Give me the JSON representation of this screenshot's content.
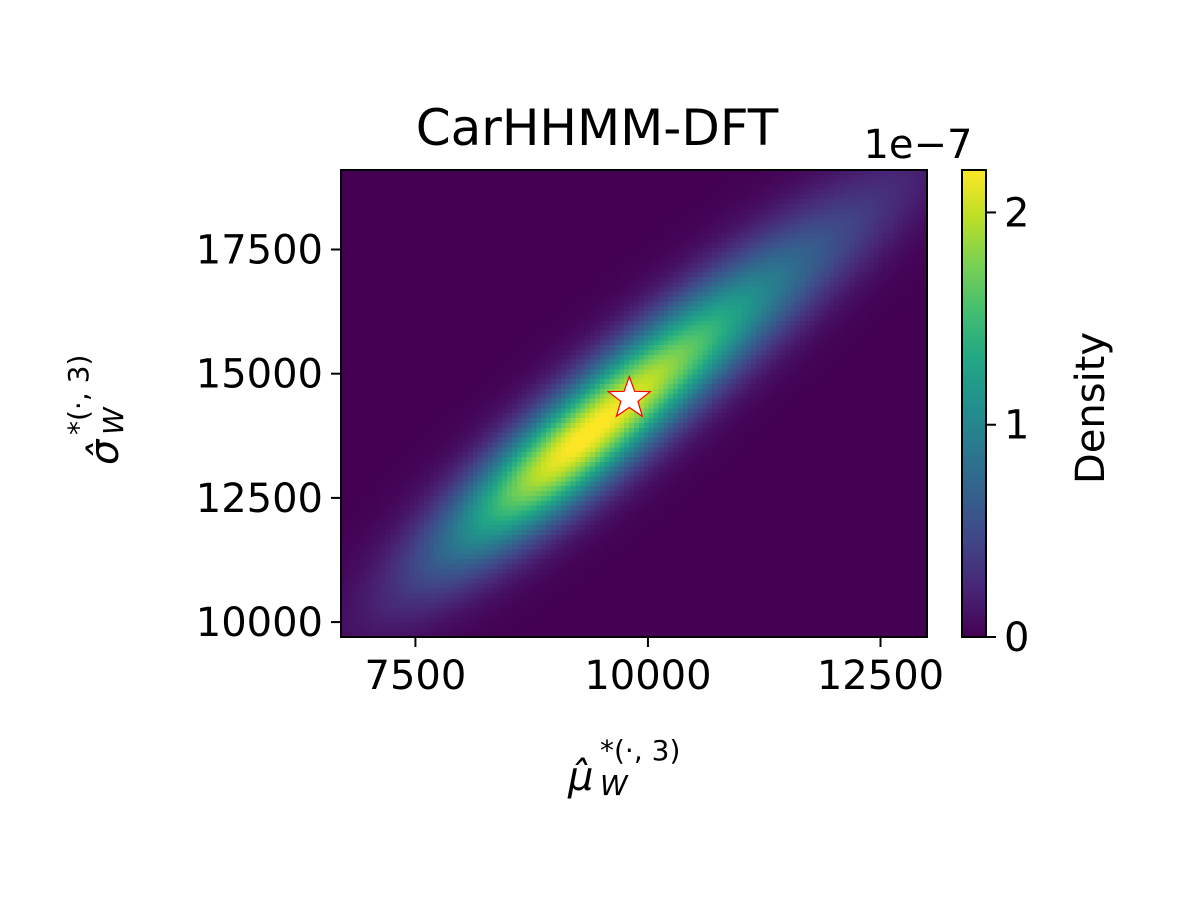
{
  "chart_data": {
    "type": "heatmap",
    "title": "CarHHMM-DFT",
    "xlabel": "μ̂",
    "xlabel_superscript": "*(·, 3)",
    "xlabel_subscript": "W",
    "ylabel": "σ̂",
    "ylabel_superscript": "*(·, 3)",
    "ylabel_subscript": "W",
    "xlim": [
      6700,
      13000
    ],
    "ylim": [
      9700,
      19100
    ],
    "x_ticks": [
      7500,
      10000,
      12500
    ],
    "x_tick_labels": [
      "7500",
      "10000",
      "12500"
    ],
    "y_ticks": [
      10000,
      12500,
      15000,
      17500
    ],
    "y_tick_labels": [
      "10000",
      "12500",
      "15000",
      "17500"
    ],
    "colorbar": {
      "label": "Density",
      "scale_note": "1e−7",
      "min": 0,
      "max": 2.2,
      "ticks": [
        0,
        1,
        2
      ],
      "tick_labels": [
        "0",
        "1",
        "2"
      ],
      "colormap": "viridis"
    },
    "density_peak": {
      "x": 9300,
      "y": 13700,
      "value": 2.2
    },
    "density_ridge_slope": 1.72,
    "marker": {
      "type": "star",
      "x": 9800,
      "y": 14500,
      "fill": "#ffffff",
      "edge": "#ff0000"
    },
    "grid": false,
    "legend": "none"
  }
}
